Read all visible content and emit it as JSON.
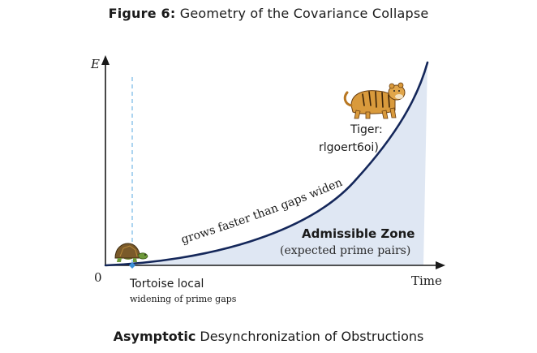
{
  "figure": {
    "title_bold": "Figure 6:",
    "title_rest": " Geometry of the Covariance Collapse",
    "caption_bold": "Asymptotic",
    "caption_rest": " Desynchronization of Obstructions"
  },
  "axes": {
    "y_label": "E",
    "x_label": "Time",
    "origin_label": "0"
  },
  "zone": {
    "title": "Admissible Zone",
    "subtitle": "(expected prime pairs)",
    "fill_color": "#dfe7f3"
  },
  "curve": {
    "label": "grows faster than gaps  widen",
    "color": "#14275a"
  },
  "tiger": {
    "label_line1": "Tiger:",
    "label_line2": "rlgoert6oi)"
  },
  "tortoise": {
    "label": "Tortoise local",
    "sub_label": "widening of prime gaps",
    "marker_color": "#3a8fd8"
  }
}
